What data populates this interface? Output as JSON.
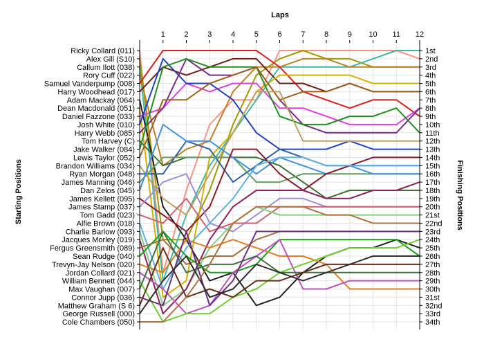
{
  "chart_data": {
    "type": "line",
    "title": "",
    "xlabel": "Laps",
    "ylabel_left": "Starting Positions",
    "ylabel_right": "Finishing Positions",
    "x_ticks": [
      "1",
      "2",
      "3",
      "4",
      "5",
      "6",
      "7",
      "8",
      "9",
      "10",
      "11",
      "12"
    ],
    "grid": true,
    "drivers": [
      "Ricky Collard (011)",
      "Alex Gill (S10)",
      "Callum Ilott (038)",
      "Rory Cuff (022)",
      "Samuel Vanderpump (008)",
      "Harry Woodhead (017)",
      "Adam Mackay (064)",
      "Dean Macdonald (051)",
      "Daniel Fazzone (033)",
      "Josh White (010)",
      "Harry Webb (085)",
      "Tom Harvey (C)",
      "Jake Walker (084)",
      "Lewis Taylor (052)",
      "Brandon Williams (034)",
      "Ryan Morgan (048)",
      "James Manning (046)",
      "Dan Zelos (045)",
      "James Kellett (095)",
      "James Stamp (037)",
      "Tom Gadd (023)",
      "Alfie Brown (018)",
      "Charlie Barlow (093)",
      "Jacques Morley (019)",
      "Fergus Greensmith (089)",
      "Sean Rudge (040)",
      "Trevyn-Jay Nelson (020)",
      "Jordan Collard (021)",
      "William Bennett (044)",
      "Max Vaughan (007)",
      "Connor Jupp (036)",
      "Matthew Graham (S 6)",
      "George Russell (000)",
      "Cole Chambers (050)"
    ],
    "finishing_labels": [
      "1st",
      "2nd",
      "3rd",
      "4th",
      "5th",
      "6th",
      "7th",
      "8th",
      "9th",
      "10th",
      "11th",
      "12th",
      "13th",
      "14th",
      "15th",
      "16th",
      "17th",
      "18th",
      "19th",
      "20th",
      "21st",
      "22nd",
      "23rd",
      "24th",
      "25th",
      "26th",
      "27th",
      "28th",
      "29th",
      "30th",
      "31st",
      "32nd",
      "33rd",
      "34th"
    ],
    "finishing_label_positions": [
      1,
      2,
      3,
      4,
      5,
      6,
      7,
      8,
      9,
      10,
      11,
      12,
      13,
      14,
      15,
      16,
      17,
      18,
      19,
      20,
      21,
      22,
      23,
      24,
      25,
      26,
      27,
      28,
      29,
      30,
      31,
      32,
      33,
      34
    ],
    "series": [
      {
        "color": "#ff9080",
        "positions": [
          28,
          18,
          10,
          7,
          7,
          1,
          1,
          1,
          1,
          1,
          1,
          2
        ]
      },
      {
        "color": "#9b9b00",
        "positions": [
          24,
          24,
          18,
          10,
          4,
          2,
          1,
          2,
          2,
          3,
          3,
          3
        ]
      },
      {
        "color": "#3cb9a5",
        "positions": [
          29,
          21,
          15,
          11,
          7,
          3,
          3,
          3,
          3,
          2,
          1,
          1
        ]
      },
      {
        "color": "#c08020",
        "positions": [
          15,
          13,
          12,
          6,
          3,
          3,
          2,
          2,
          3,
          3,
          3,
          3
        ]
      },
      {
        "color": "#d82020",
        "positions": [
          1,
          1,
          1,
          1,
          1,
          3,
          6,
          7,
          8,
          7,
          7,
          9
        ]
      },
      {
        "color": "#702010",
        "positions": [
          3,
          4,
          3,
          2,
          2,
          5,
          5,
          6,
          5,
          6,
          6,
          6
        ]
      },
      {
        "color": "#202020",
        "positions": [
          20,
          24,
          29,
          28,
          32,
          31,
          28,
          26,
          25,
          25,
          24,
          25
        ]
      },
      {
        "color": "#d4b000",
        "positions": [
          31,
          29,
          14,
          11,
          6,
          4,
          4,
          4,
          4,
          5,
          5,
          5
        ]
      },
      {
        "color": "#e040e0",
        "positions": [
          8,
          5,
          6,
          5,
          5,
          8,
          8,
          9,
          10,
          10,
          10,
          8
        ]
      },
      {
        "color": "#2040c8",
        "positions": [
          2,
          5,
          5,
          7,
          11,
          13,
          13,
          13,
          12,
          13,
          13,
          13
        ]
      },
      {
        "color": "#7a2a8a",
        "positions": [
          8,
          2,
          4,
          4,
          3,
          7,
          10,
          11,
          11,
          11,
          11,
          8
        ]
      },
      {
        "color": "#407030",
        "positions": [
          15,
          14,
          14,
          14,
          14,
          15,
          17,
          19,
          18,
          18,
          18,
          18
        ]
      },
      {
        "color": "#209020",
        "positions": [
          3,
          2,
          3,
          3,
          3,
          9,
          10,
          10,
          9,
          9,
          8,
          11
        ]
      },
      {
        "color": "#a06020",
        "positions": [
          7,
          7,
          5,
          4,
          3,
          7,
          6,
          6,
          5,
          6,
          6,
          6
        ]
      },
      {
        "color": "#c0a060",
        "positions": [
          19,
          21,
          16,
          11,
          6,
          6,
          12,
          12,
          12,
          12,
          12,
          12
        ]
      },
      {
        "color": "#3060a0",
        "positions": [
          16,
          12,
          13,
          17,
          15,
          13,
          14,
          15,
          15,
          15,
          15,
          15
        ]
      },
      {
        "color": "#60a060",
        "positions": [
          14,
          14,
          14,
          14,
          17,
          17,
          16,
          16,
          16,
          16,
          16,
          16
        ]
      },
      {
        "color": "#4090e0",
        "positions": [
          10,
          12,
          12,
          14,
          16,
          14,
          15,
          16,
          15,
          16,
          16,
          16
        ]
      },
      {
        "color": "#8a1a2a",
        "positions": [
          21,
          23,
          20,
          13,
          13,
          16,
          18,
          16,
          15,
          14,
          14,
          14
        ]
      },
      {
        "color": "#9f8fcf",
        "positions": [
          17,
          16,
          22,
          23,
          21,
          19,
          19,
          20,
          20,
          20,
          20,
          20
        ]
      },
      {
        "color": "#d06070",
        "positions": [
          22,
          19,
          23,
          22,
          22,
          20,
          20,
          20,
          20,
          20,
          20,
          20
        ]
      },
      {
        "color": "#5fb0e0",
        "positions": [
          30,
          25,
          22,
          19,
          15,
          14,
          14,
          15,
          15,
          15,
          15,
          15
        ]
      },
      {
        "color": "#80d080",
        "positions": [
          32,
          30,
          25,
          22,
          20,
          21,
          21,
          21,
          21,
          21,
          21,
          21
        ]
      },
      {
        "color": "#8a2060",
        "positions": [
          33,
          30,
          24,
          20,
          18,
          18,
          18,
          19,
          19,
          18,
          18,
          17
        ]
      },
      {
        "color": "#a07040",
        "positions": [
          24,
          27,
          26,
          26,
          24,
          23,
          23,
          23,
          23,
          23,
          23,
          23
        ]
      },
      {
        "color": "#18a018",
        "positions": [
          23,
          26,
          28,
          28,
          27,
          24,
          24,
          24,
          24,
          24,
          24,
          26
        ]
      },
      {
        "color": "#e08020",
        "positions": [
          28,
          24,
          25,
          24,
          25,
          26,
          26,
          27,
          30,
          30,
          30,
          30
        ]
      },
      {
        "color": "#c050c0",
        "positions": [
          30,
          33,
          32,
          28,
          26,
          24,
          30,
          30,
          29,
          29,
          29,
          29
        ]
      },
      {
        "color": "#6fcf2f",
        "positions": [
          34,
          33,
          33,
          31,
          30,
          28,
          27,
          26,
          25,
          25,
          25,
          24
        ]
      },
      {
        "color": "#407040",
        "positions": [
          23,
          28,
          27,
          27,
          26,
          28,
          28,
          28,
          28,
          28,
          28,
          28
        ]
      },
      {
        "color": "#703080",
        "positions": [
          32,
          23,
          32,
          29,
          23,
          23,
          23,
          23,
          23,
          23,
          23,
          23
        ]
      },
      {
        "color": "#60301a",
        "positions": [
          25,
          31,
          30,
          31,
          29,
          29,
          28,
          27,
          27,
          27,
          27,
          27
        ]
      },
      {
        "color": "#2f2f2f",
        "positions": [
          29,
          26,
          31,
          30,
          27,
          28,
          29,
          28,
          27,
          26,
          26,
          26
        ]
      },
      {
        "color": "#b07040",
        "positions": [
          34,
          31,
          27,
          22,
          20,
          20,
          20,
          21,
          21,
          22,
          22,
          22
        ]
      }
    ]
  }
}
